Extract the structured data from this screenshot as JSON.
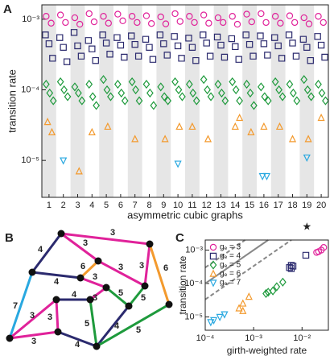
{
  "chart_data": [
    {
      "type": "scatter",
      "panel_label": "A",
      "xlabel": "asymmetric cubic graphs",
      "ylabel": "transition rate",
      "xlim": [
        0.5,
        20.5
      ],
      "xticks": [
        1,
        2,
        3,
        4,
        5,
        6,
        7,
        8,
        9,
        10,
        11,
        12,
        13,
        14,
        15,
        16,
        17,
        18,
        19,
        20
      ],
      "ylim": [
        3e-06,
        0.0016
      ],
      "log_y": true,
      "yticks": [
        {
          "value": 1e-05,
          "label": "10⁻⁵"
        },
        {
          "value": 0.0001,
          "label": "10⁻⁴"
        },
        {
          "value": 0.001,
          "label": "10⁻³"
        }
      ],
      "annotations": [
        {
          "text": "★",
          "x": 19
        }
      ],
      "series": [
        {
          "marker": "circle",
          "color": "#e0229a",
          "x": [
            0.8,
            1.15,
            1.8,
            2.15,
            2.8,
            3.15,
            3.8,
            4.15,
            4.8,
            5.15,
            5.8,
            6.15,
            6.8,
            7.15,
            7.8,
            8.15,
            8.8,
            9.15,
            9.8,
            10.15,
            10.8,
            11.15,
            11.8,
            12.15,
            12.8,
            13.15,
            13.8,
            14.15,
            14.8,
            15.15,
            15.8,
            16.15,
            16.8,
            17.15,
            17.8,
            18.15,
            18.8,
            19.15,
            19.8,
            20.15
          ],
          "values": [
            0.0011,
            0.00088,
            0.00115,
            0.0009,
            0.00105,
            0.00085,
            0.0012,
            0.00092,
            0.0011,
            0.00088,
            0.00118,
            0.00095,
            0.0011,
            0.0009,
            0.00112,
            0.00087,
            0.00108,
            0.00086,
            0.0012,
            0.00093,
            0.0011,
            0.0009,
            0.00115,
            0.00088,
            0.00105,
            0.0009,
            0.0011,
            0.00085,
            0.00118,
            0.00092,
            0.0012,
            0.0009,
            0.0011,
            0.00088,
            0.00112,
            0.0009,
            0.00105,
            0.00086,
            0.0011,
            0.0009
          ]
        },
        {
          "marker": "square",
          "color": "#2b2a6e",
          "x": [
            0.75,
            1,
            1.25,
            1.75,
            2,
            2.25,
            2.75,
            3,
            3.25,
            3.75,
            4,
            4.25,
            4.75,
            5,
            5.25,
            5.75,
            6,
            6.25,
            6.75,
            7,
            7.25,
            7.75,
            8,
            8.25,
            8.75,
            9,
            9.25,
            9.75,
            10,
            10.25,
            10.75,
            11,
            11.25,
            11.75,
            12,
            12.25,
            12.75,
            13,
            13.25,
            13.75,
            14,
            14.25,
            14.75,
            15,
            15.25,
            15.75,
            16,
            16.25,
            16.75,
            17,
            17.25,
            17.75,
            18,
            18.25,
            18.75,
            19,
            19.25,
            19.75,
            20,
            20.25
          ],
          "values": [
            0.0006,
            0.00045,
            0.00028,
            0.00055,
            0.0004,
            0.00025,
            0.00065,
            0.00042,
            0.0003,
            0.0005,
            0.00038,
            0.00026,
            0.0006,
            0.00046,
            0.00032,
            0.00055,
            0.00043,
            0.00029,
            0.00058,
            0.00044,
            0.0003,
            0.00052,
            0.0004,
            0.00027,
            0.0006,
            0.00045,
            0.00031,
            0.00057,
            0.00042,
            0.00028,
            0.00054,
            0.0004,
            0.00026,
            0.0006,
            0.00046,
            0.0003,
            0.00056,
            0.00043,
            0.00029,
            0.00053,
            0.00041,
            0.00027,
            0.0006,
            0.00044,
            0.0003,
            0.00058,
            0.00045,
            0.00031,
            0.00055,
            0.00042,
            0.00028,
            0.0006,
            0.00046,
            0.0003,
            0.00052,
            0.0004,
            0.00026,
            0.00057,
            0.00043,
            0.00029
          ]
        },
        {
          "marker": "diamond",
          "color": "#1e9a3c",
          "x": [
            0.8,
            1.05,
            1.3,
            1.8,
            2.05,
            2.3,
            2.8,
            3.05,
            3.3,
            3.8,
            4.05,
            4.3,
            4.8,
            5.05,
            5.3,
            5.8,
            6.05,
            6.3,
            6.8,
            7.05,
            7.3,
            7.8,
            8.05,
            8.3,
            8.8,
            9.05,
            9.3,
            9.8,
            10.05,
            10.3,
            10.8,
            11.05,
            11.3,
            11.8,
            12.05,
            12.3,
            12.8,
            13.05,
            13.3,
            13.8,
            14.05,
            14.3,
            14.8,
            15.05,
            15.3,
            15.8,
            16.05,
            16.3,
            16.8,
            17.05,
            17.3,
            17.8,
            18.05,
            18.3,
            18.8,
            19.05,
            19.3,
            19.8,
            20.05,
            20.3
          ],
          "values": [
            0.00012,
            9e-05,
            7e-05,
            0.00013,
            0.0001,
            8e-05,
            0.00011,
            9e-05,
            7e-05,
            0.00012,
            8e-05,
            6e-05,
            0.00014,
            0.0001,
            8e-05,
            0.00012,
            9e-05,
            7e-05,
            0.00013,
            0.0001,
            7e-05,
            0.00012,
            9e-05,
            6e-05,
            0.00011,
            8e-05,
            7e-05,
            0.00013,
            0.0001,
            8e-05,
            0.00012,
            9e-05,
            7e-05,
            0.00014,
            0.0001,
            8e-05,
            0.00012,
            9e-05,
            7e-05,
            0.00013,
            0.0001,
            7e-05,
            0.00012,
            9e-05,
            6e-05,
            0.00011,
            8e-05,
            7e-05,
            0.00013,
            0.0001,
            8e-05,
            0.00012,
            9e-05,
            7e-05,
            0.00014,
            0.0001,
            8e-05,
            0.00012,
            9e-05,
            7e-05
          ]
        },
        {
          "marker": "triangle-up",
          "color": "#f39a2e",
          "x": [
            0.9,
            1.2,
            3.1,
            4.0,
            5.1,
            7.0,
            9.1,
            10.1,
            11.0,
            12.1,
            14.0,
            14.3,
            15.1,
            16.0,
            17.1,
            18.0,
            19.1,
            20.0
          ],
          "values": [
            3.5e-05,
            2.5e-05,
            7e-06,
            2.5e-05,
            3e-05,
            2e-05,
            2e-05,
            3e-05,
            3e-05,
            2e-05,
            3e-05,
            4e-05,
            2.5e-05,
            3e-05,
            3e-05,
            2e-05,
            2e-05,
            4e-05
          ]
        },
        {
          "marker": "triangle-down",
          "color": "#29a8e0",
          "x": [
            2.0,
            10.0,
            15.9,
            16.2,
            19.0
          ],
          "values": [
            1e-05,
            9e-06,
            6e-06,
            6e-06,
            1.1e-05
          ]
        }
      ]
    },
    {
      "type": "scatter",
      "panel_label": "C",
      "xlabel": "girth-weighted rate",
      "ylabel": "transition rate",
      "xlim": [
        0.0001,
        0.035
      ],
      "log_x": true,
      "ylim": [
        4e-06,
        0.002
      ],
      "log_y": true,
      "xticks": [
        {
          "value": 0.0001,
          "label": "10⁻⁴"
        },
        {
          "value": 0.001,
          "label": "10⁻³"
        },
        {
          "value": 0.01,
          "label": "10⁻²"
        }
      ],
      "yticks": [
        {
          "value": 1e-05,
          "label": "10⁻⁵"
        },
        {
          "value": 0.0001,
          "label": "10⁻⁴"
        },
        {
          "value": 0.001,
          "label": "10⁻³"
        }
      ],
      "legend": "upper-left",
      "series": [
        {
          "name": "gₑ = 3",
          "marker": "circle",
          "color": "#e0229a",
          "x": [
            0.02,
            0.022,
            0.025,
            0.028
          ],
          "values": [
            0.00085,
            0.0009,
            0.001,
            0.0012
          ]
        },
        {
          "name": "gₑ = 4",
          "marker": "square",
          "color": "#2b2a6e",
          "x": [
            0.0055,
            0.006,
            0.006,
            0.0065,
            0.012
          ],
          "values": [
            0.0003,
            0.00035,
            0.00028,
            0.00033,
            0.0007
          ]
        },
        {
          "name": "gₑ = 5",
          "marker": "diamond",
          "color": "#1e9a3c",
          "x": [
            0.0018,
            0.002,
            0.0025,
            0.003,
            0.004
          ],
          "values": [
            5e-05,
            5.5e-05,
            6e-05,
            8e-05,
            0.00011
          ]
        },
        {
          "name": "gₑ = 6",
          "marker": "triangle-up",
          "color": "#f39a2e",
          "x": [
            0.0005,
            0.0006,
            0.0006,
            0.0008
          ],
          "values": [
            1.8e-05,
            2.5e-05,
            1.5e-05,
            4e-05
          ]
        },
        {
          "name": "gₑ = 7",
          "marker": "triangle-down",
          "color": "#29a8e0",
          "x": [
            0.00013,
            0.00015,
            0.0002,
            0.00025
          ],
          "values": [
            7e-06,
            8e-06,
            1e-05,
            1.2e-05
          ]
        }
      ]
    }
  ],
  "diagram": {
    "panel_label": "B",
    "edge_labels": [
      "3",
      "4",
      "3",
      "3",
      "6",
      "4",
      "7",
      "3",
      "3",
      "3",
      "4",
      "6",
      "3",
      "3",
      "3",
      "5",
      "5",
      "4",
      "4",
      "5",
      "5"
    ]
  }
}
